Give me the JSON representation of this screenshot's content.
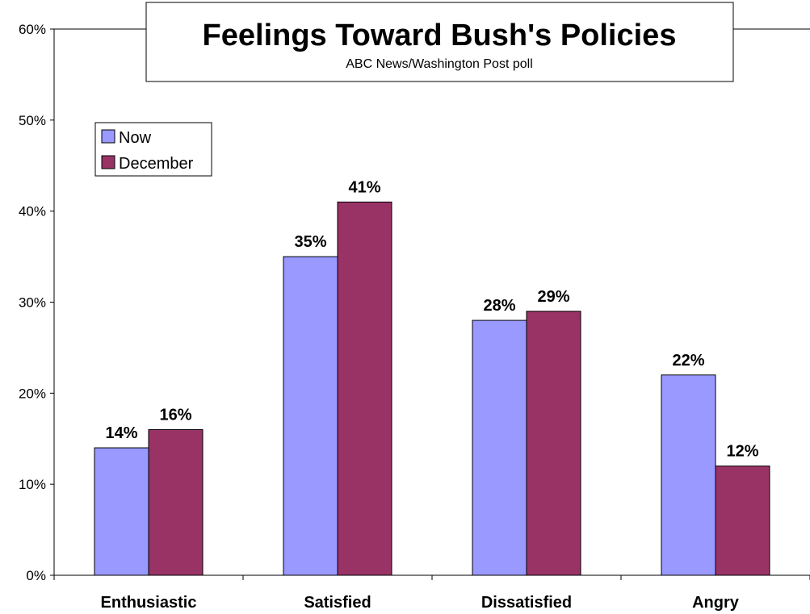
{
  "chart_data": {
    "type": "bar",
    "title": "Feelings Toward Bush's Policies",
    "subtitle": "ABC News/Washington Post poll",
    "categories": [
      "Enthusiastic",
      "Satisfied",
      "Dissatisfied",
      "Angry"
    ],
    "series": [
      {
        "name": "Now",
        "values": [
          14,
          35,
          28,
          22
        ],
        "color": "#9999ff"
      },
      {
        "name": "December",
        "values": [
          16,
          41,
          29,
          12
        ],
        "color": "#993366"
      }
    ],
    "value_suffix": "%",
    "ylim": [
      0,
      60
    ],
    "yticks": [
      0,
      10,
      20,
      30,
      40,
      50,
      60
    ],
    "ytick_labels": [
      "0%",
      "10%",
      "20%",
      "30%",
      "40%",
      "50%",
      "60%"
    ],
    "grid": false,
    "legend_position": "top-left"
  }
}
